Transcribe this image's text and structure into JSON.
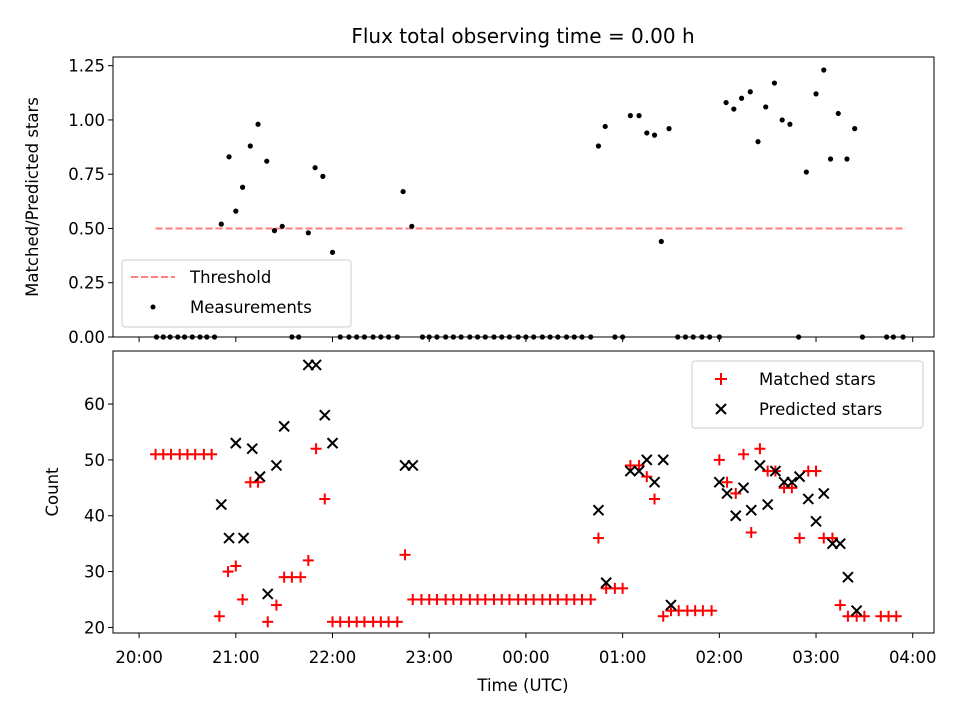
{
  "title": "Flux total observing time = 0.00 h",
  "xlabel": "Time (UTC)",
  "x_ticks": [
    "20:00",
    "21:00",
    "22:00",
    "23:00",
    "00:00",
    "01:00",
    "02:00",
    "03:00",
    "04:00"
  ],
  "chart_data": [
    {
      "type": "scatter",
      "ylabel": "Matched/Predicted stars",
      "xlim": [
        19.73,
        28.22
      ],
      "ylim": [
        0,
        1.29
      ],
      "y_ticks": [
        "0.00",
        "0.25",
        "0.50",
        "0.75",
        "1.00",
        "1.25"
      ],
      "legend_position": "lower-left",
      "series": [
        {
          "name": "Threshold",
          "style": "dashed-line",
          "color": "#ff7f7f",
          "x": [
            20.17,
            23.55
          ],
          "y": [
            0.5,
            0.5
          ],
          "x_end": 27.93
        },
        {
          "name": "Measurements",
          "style": "dot",
          "color": "#000000",
          "x": [
            20.18,
            20.25,
            20.32,
            20.4,
            20.47,
            20.55,
            20.63,
            20.7,
            20.78,
            20.85,
            20.93,
            21.0,
            21.07,
            21.15,
            21.23,
            21.32,
            21.4,
            21.48,
            21.58,
            21.65,
            21.75,
            21.82,
            21.9,
            22.0,
            22.08,
            22.17,
            22.25,
            22.33,
            22.42,
            22.5,
            22.58,
            22.67,
            22.73,
            22.82,
            22.93,
            23.0,
            23.08,
            23.17,
            23.25,
            23.33,
            23.42,
            23.5,
            23.58,
            23.67,
            23.75,
            23.83,
            23.92,
            24.0,
            24.08,
            24.17,
            24.25,
            24.33,
            24.42,
            24.5,
            24.58,
            24.67,
            24.75,
            24.82,
            24.92,
            25.0,
            25.08,
            25.17,
            25.25,
            25.33,
            25.4,
            25.48,
            25.57,
            25.65,
            25.73,
            25.82,
            25.9,
            26.0,
            26.07,
            26.15,
            26.23,
            26.32,
            26.4,
            26.48,
            26.57,
            26.65,
            26.73,
            26.82,
            26.9,
            27.0,
            27.08,
            27.15,
            27.23,
            27.32,
            27.4,
            27.48,
            27.73,
            27.8,
            27.9
          ],
          "y": [
            0,
            0,
            0,
            0,
            0,
            0,
            0,
            0,
            0,
            0.52,
            0.83,
            0.58,
            0.69,
            0.88,
            0.98,
            0.81,
            0.49,
            0.51,
            0,
            0,
            0.48,
            0.78,
            0.74,
            0.39,
            0,
            0,
            0,
            0,
            0,
            0,
            0,
            0,
            0.67,
            0.51,
            0,
            0,
            0,
            0,
            0,
            0,
            0,
            0,
            0,
            0,
            0,
            0,
            0,
            0,
            0,
            0,
            0,
            0,
            0,
            0,
            0,
            0,
            0.88,
            0.97,
            0,
            0,
            1.02,
            1.02,
            0.94,
            0.93,
            0.44,
            0.96,
            0,
            0,
            0,
            0,
            0,
            0,
            1.08,
            1.05,
            1.1,
            1.13,
            0.9,
            1.06,
            1.17,
            1.0,
            0.98,
            0,
            0.76,
            1.12,
            1.23,
            0.82,
            1.03,
            0.82,
            0.96,
            0,
            0,
            0,
            0
          ]
        }
      ]
    },
    {
      "type": "scatter",
      "ylabel": "Count",
      "xlim": [
        19.73,
        28.22
      ],
      "ylim": [
        19,
        69.5
      ],
      "y_ticks": [
        "20",
        "30",
        "40",
        "50",
        "60"
      ],
      "legend_position": "top-right",
      "series": [
        {
          "name": "Matched stars",
          "style": "plus",
          "color": "#ff0000",
          "x": [
            20.17,
            20.25,
            20.33,
            20.42,
            20.5,
            20.58,
            20.67,
            20.75,
            20.83,
            20.92,
            21.0,
            21.07,
            21.15,
            21.23,
            21.33,
            21.42,
            21.5,
            21.58,
            21.67,
            21.75,
            21.83,
            21.92,
            22.0,
            22.08,
            22.17,
            22.25,
            22.33,
            22.42,
            22.5,
            22.58,
            22.67,
            22.75,
            22.83,
            22.92,
            23.0,
            23.08,
            23.17,
            23.25,
            23.33,
            23.42,
            23.5,
            23.58,
            23.67,
            23.75,
            23.83,
            23.92,
            24.0,
            24.08,
            24.17,
            24.25,
            24.33,
            24.42,
            24.5,
            24.58,
            24.67,
            24.75,
            24.83,
            24.92,
            25.0,
            25.08,
            25.17,
            25.25,
            25.33,
            25.42,
            25.5,
            25.58,
            25.67,
            25.75,
            25.83,
            25.92,
            26.0,
            26.08,
            26.17,
            26.25,
            26.33,
            26.42,
            26.5,
            26.58,
            26.67,
            26.75,
            26.83,
            26.92,
            27.0,
            27.08,
            27.17,
            27.25,
            27.33,
            27.42,
            27.5,
            27.67,
            27.75,
            27.83
          ],
          "y": [
            51,
            51,
            51,
            51,
            51,
            51,
            51,
            51,
            22,
            30,
            31,
            25,
            46,
            46,
            21,
            24,
            29,
            29,
            29,
            32,
            52,
            43,
            21,
            21,
            21,
            21,
            21,
            21,
            21,
            21,
            21,
            33,
            25,
            25,
            25,
            25,
            25,
            25,
            25,
            25,
            25,
            25,
            25,
            25,
            25,
            25,
            25,
            25,
            25,
            25,
            25,
            25,
            25,
            25,
            25,
            36,
            27,
            27,
            27,
            49,
            49,
            47,
            43,
            22,
            23,
            23,
            23,
            23,
            23,
            23,
            50,
            46,
            44,
            51,
            37,
            52,
            48,
            48,
            45,
            45,
            36,
            48,
            48,
            36,
            36,
            24,
            22,
            22,
            22,
            22,
            22,
            22
          ]
        },
        {
          "name": "Predicted stars",
          "style": "x",
          "color": "#000000",
          "x": [
            20.85,
            20.93,
            21.0,
            21.08,
            21.17,
            21.25,
            21.33,
            21.42,
            21.5,
            21.75,
            21.83,
            21.92,
            22.0,
            22.75,
            22.83,
            24.75,
            24.83,
            25.08,
            25.17,
            25.25,
            25.33,
            25.42,
            25.5,
            26.0,
            26.08,
            26.17,
            26.25,
            26.33,
            26.42,
            26.5,
            26.58,
            26.67,
            26.75,
            26.83,
            26.92,
            27.0,
            27.08,
            27.17,
            27.25,
            27.33,
            27.42
          ],
          "y": [
            42,
            36,
            53,
            36,
            52,
            47,
            26,
            49,
            56,
            67,
            67,
            58,
            53,
            49,
            49,
            41,
            28,
            48,
            48,
            50,
            46,
            50,
            24,
            46,
            44,
            40,
            45,
            41,
            49,
            42,
            48,
            46,
            46,
            47,
            43,
            39,
            44,
            35,
            35,
            29,
            23
          ]
        }
      ]
    }
  ]
}
